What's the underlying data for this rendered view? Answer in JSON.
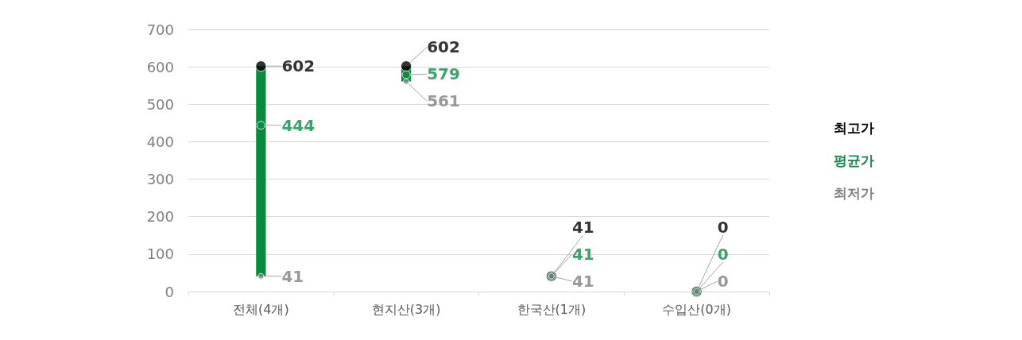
{
  "chart_data": {
    "type": "bar",
    "categories": [
      "전체(4개)",
      "현지산(3개)",
      "한국산(1개)",
      "수입산(0개)"
    ],
    "ylim": [
      0,
      700
    ],
    "yticks": [
      0,
      100,
      200,
      300,
      400,
      500,
      600,
      700
    ],
    "grid": "y",
    "series": [
      {
        "color": "#0b8a3c",
        "values": [
          561,
          41,
          null,
          null
        ],
        "base": [
          41,
          561,
          null,
          null
        ]
      },
      {
        "name": "최고가",
        "type": "scatter",
        "marker": "circle",
        "color": "#000000",
        "values": [
          602,
          602,
          41,
          0
        ],
        "value_labels": [
          "602",
          "602",
          "41",
          "0"
        ]
      },
      {
        "name": "평균가",
        "type": "scatter",
        "marker": "circle",
        "color": "#13884a",
        "values": [
          444,
          579,
          41,
          0
        ],
        "value_labels": [
          "444",
          "579",
          "41",
          "0"
        ]
      },
      {
        "name": "최저가",
        "type": "scatter",
        "marker": "circle",
        "color": "#7f7f7f",
        "values": [
          41,
          561,
          41,
          0
        ],
        "value_labels": [
          "41",
          "561",
          "41",
          "0"
        ]
      }
    ]
  }
}
